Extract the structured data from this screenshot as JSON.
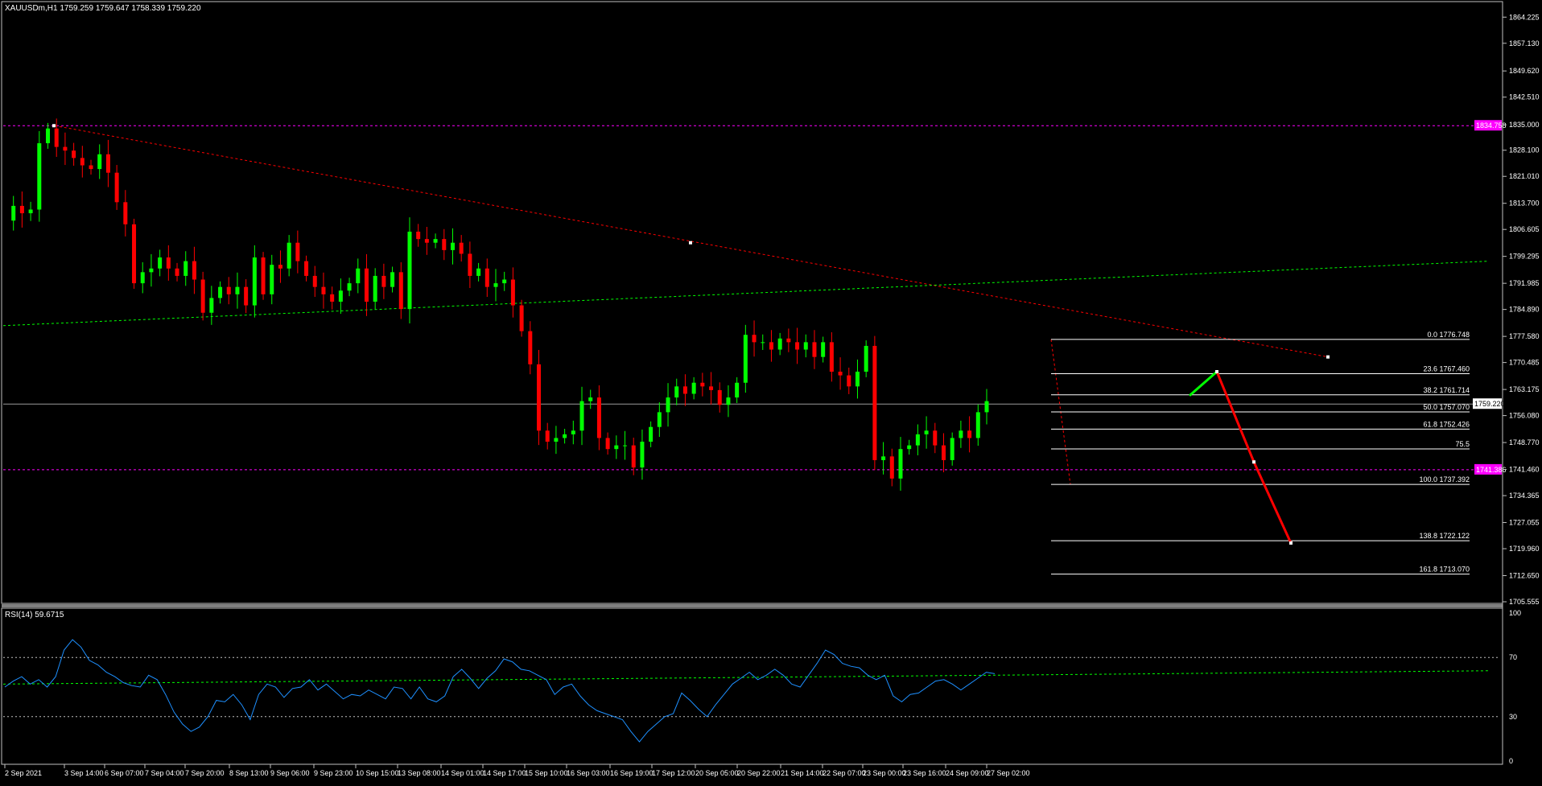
{
  "header": {
    "symbol_info": "XAUUSDm,H1  1759.259 1759.647 1758.339 1759.220"
  },
  "rsi_panel": {
    "label": "RSI(14) 59.6715",
    "scale_labels": [
      "100",
      "70",
      "30",
      "0"
    ]
  },
  "colors": {
    "background": "#000000",
    "bull_candle": "#00ff00",
    "bear_candle": "#ff0000",
    "fib_lines": "#ffffff",
    "trend_red": "#ff0000",
    "trend_green": "#00ff00",
    "horizontal_magenta": "#ff00ff",
    "rsi_line": "#1e90ff",
    "rsi_levels": "#c0c0c0",
    "forecast_up": "#00ff00",
    "forecast_down": "#ff0000"
  },
  "chart_data": [
    {
      "type": "candlestick",
      "symbol": "XAUUSDm",
      "timeframe": "H1",
      "ylim": [
        1705.555,
        1868.0
      ],
      "y_ticks": [
        "1864.225",
        "1857.130",
        "1849.620",
        "1842.510",
        "1835.000",
        "1828.100",
        "1821.010",
        "1813.700",
        "1806.605",
        "1799.295",
        "1791.985",
        "1784.890",
        "1777.580",
        "1770.485",
        "1763.175",
        "1756.080",
        "1748.770",
        "1741.460",
        "1734.365",
        "1727.055",
        "1719.960",
        "1712.650",
        "1705.555"
      ],
      "x_ticks": [
        "2 Sep 2021",
        "3 Sep 14:00",
        "6 Sep 07:00",
        "7 Sep 04:00",
        "7 Sep 20:00",
        "8 Sep 13:00",
        "9 Sep 06:00",
        "9 Sep 23:00",
        "10 Sep 15:00",
        "13 Sep 08:00",
        "14 Sep 01:00",
        "14 Sep 17:00",
        "15 Sep 10:00",
        "16 Sep 03:00",
        "16 Sep 19:00",
        "17 Sep 12:00",
        "20 Sep 05:00",
        "20 Sep 22:00",
        "21 Sep 14:00",
        "22 Sep 07:00",
        "23 Sep 00:00",
        "23 Sep 16:00",
        "24 Sep 09:00",
        "27 Sep 02:00"
      ],
      "price_path": [
        1809,
        1813,
        1811,
        1812,
        1830,
        1834,
        1829,
        1828,
        1826,
        1824,
        1823,
        1827,
        1822,
        1814,
        1808,
        1792,
        1795,
        1796,
        1799,
        1796,
        1794,
        1798,
        1793,
        1784,
        1788,
        1791,
        1789,
        1791,
        1786,
        1799,
        1789,
        1797,
        1796,
        1803,
        1798,
        1794,
        1791,
        1789,
        1787,
        1790,
        1792,
        1796,
        1787,
        1794,
        1791,
        1795,
        1785,
        1806,
        1804,
        1803,
        1804,
        1801,
        1803,
        1800,
        1794,
        1796,
        1791,
        1792,
        1793,
        1786,
        1779,
        1770,
        1752,
        1749,
        1750,
        1751,
        1752,
        1760,
        1761,
        1750,
        1747,
        1748,
        1748,
        1742,
        1749,
        1753,
        1757,
        1761,
        1764,
        1762,
        1765,
        1764,
        1763,
        1759,
        1761,
        1765,
        1778,
        1776,
        1776,
        1774,
        1777,
        1776,
        1774,
        1776,
        1772,
        1776,
        1768,
        1767,
        1764,
        1768,
        1775,
        1744,
        1745,
        1739,
        1747,
        1748,
        1751,
        1752,
        1748,
        1744,
        1750,
        1752,
        1750,
        1757,
        1760
      ],
      "last_price": "1759.220",
      "horizontal_levels": [
        {
          "price": 1834.758,
          "label": "1834.758",
          "style": "dashed",
          "color": "magenta"
        },
        {
          "price": 1741.386,
          "label": "1741.386",
          "style": "dashed",
          "color": "magenta"
        },
        {
          "price": 1759.22,
          "label": "",
          "style": "solid",
          "color": "gray"
        }
      ],
      "trendlines": [
        {
          "name": "resistance",
          "color": "red",
          "style": "dashed",
          "from": {
            "x": "3 Sep 14:00",
            "y": 1834.758
          },
          "to": {
            "x": "27 Sep 09:00",
            "y": 1772.0
          }
        },
        {
          "name": "support",
          "color": "green",
          "style": "dashed",
          "from": {
            "x": "2 Sep 2021",
            "y": 1780.5
          },
          "to": {
            "x": "30 Sep 00:00",
            "y": 1798.0
          }
        }
      ],
      "fibonacci": {
        "levels": [
          {
            "ratio": "0.0",
            "price": 1776.748,
            "label": "0.0 1776.748"
          },
          {
            "ratio": "23.6",
            "price": 1767.46,
            "label": "23.6 1767.460"
          },
          {
            "ratio": "38.2",
            "price": 1761.714,
            "label": "38.2 1761.714"
          },
          {
            "ratio": "50.0",
            "price": 1757.07,
            "label": "50.0 1757.070"
          },
          {
            "ratio": "61.8",
            "price": 1752.426,
            "label": "61.8 1752.426"
          },
          {
            "ratio": "75.5",
            "price": 1747.03,
            "label": "75.5"
          },
          {
            "ratio": "100.0",
            "price": 1737.392,
            "label": "100.0 1737.392"
          },
          {
            "ratio": "138.8",
            "price": 1722.122,
            "label": "138.8 1722.122"
          },
          {
            "ratio": "161.8",
            "price": 1713.07,
            "label": "161.8 1713.070"
          }
        ]
      },
      "forecast_path": [
        {
          "time": "27 Sep 02:00",
          "price": 1761.5,
          "direction": "start"
        },
        {
          "time": "27 Sep 07:00",
          "price": 1768.0,
          "direction": "up"
        },
        {
          "time": "27 Sep 11:00",
          "price": 1743.5,
          "direction": "down"
        },
        {
          "time": "27 Sep 15:00",
          "price": 1721.5,
          "direction": "down"
        }
      ]
    },
    {
      "type": "line",
      "name": "RSI(14)",
      "ylim": [
        0,
        100
      ],
      "levels": [
        70,
        30
      ],
      "last_value": 59.6715,
      "values": [
        50,
        54,
        57,
        52,
        55,
        50,
        57,
        75,
        82,
        77,
        68,
        65,
        60,
        57,
        53,
        51,
        50,
        58,
        55,
        45,
        33,
        25,
        20,
        23,
        30,
        41,
        40,
        45,
        38,
        28,
        45,
        52,
        50,
        43,
        49,
        50,
        55,
        48,
        52,
        47,
        42,
        45,
        44,
        48,
        45,
        42,
        50,
        49,
        42,
        50,
        42,
        40,
        44,
        57,
        62,
        56,
        49,
        56,
        61,
        69,
        67,
        62,
        61,
        58,
        55,
        45,
        50,
        52,
        44,
        38,
        34,
        32,
        30,
        28,
        20,
        13,
        20,
        25,
        30,
        32,
        46,
        41,
        35,
        30,
        38,
        45,
        52,
        56,
        60,
        55,
        58,
        62,
        58,
        52,
        50,
        58,
        66,
        75,
        72,
        66,
        64,
        63,
        58,
        55,
        58,
        44,
        40,
        45,
        46,
        50,
        54,
        55,
        52,
        48,
        52,
        56,
        60,
        59
      ],
      "trendline": {
        "color": "green",
        "style": "dashed",
        "from": {
          "x": "2 Sep 2021",
          "y": 52
        },
        "to": {
          "x": "30 Sep 00:00",
          "y": 61
        }
      }
    }
  ]
}
